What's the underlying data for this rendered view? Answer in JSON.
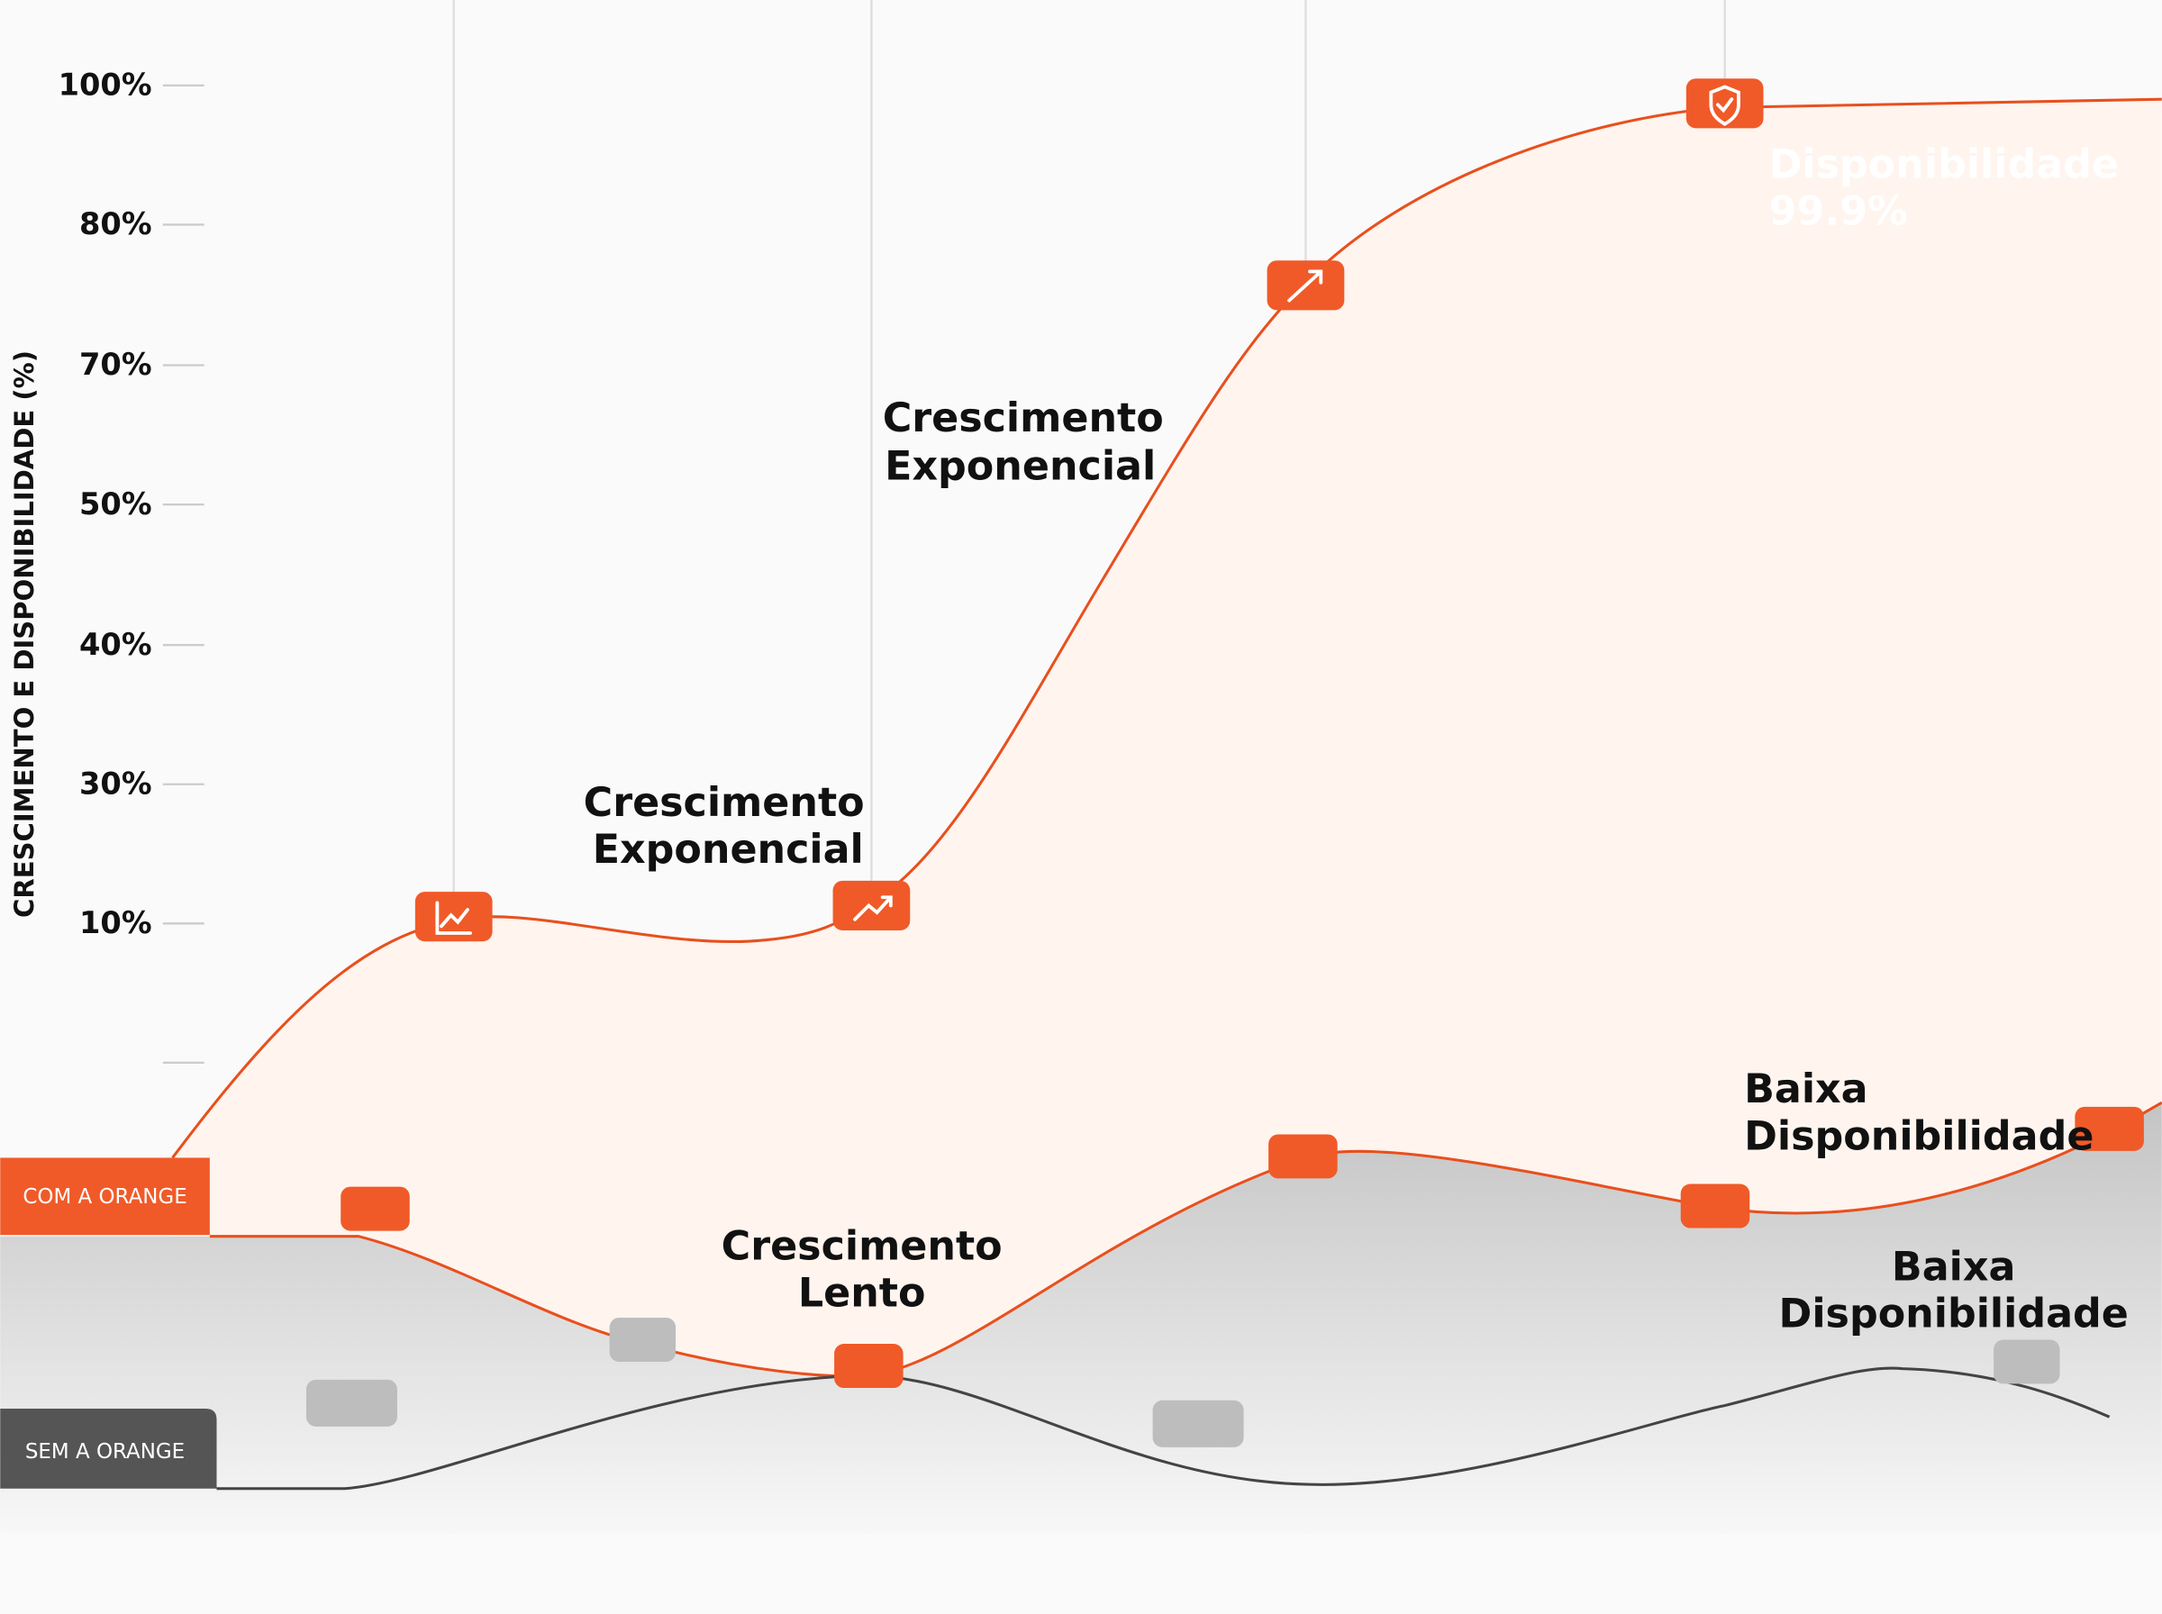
{
  "y_axis": {
    "title": "CRESCIMENTO E DISPONIBILIDADE (%)",
    "ticks": [
      "100%",
      "80%",
      "70%",
      "50%",
      "40%",
      "30%",
      "10%"
    ]
  },
  "legend": {
    "with": "COM A ORANGE",
    "without": "SEM A ORANGE"
  },
  "annotations": [
    {
      "lines": [
        "Crescimento",
        "Exponencial"
      ]
    },
    {
      "lines": [
        "Crescimento",
        "Exponencial"
      ]
    },
    {
      "lines": [
        "Crescimento",
        "Lento"
      ]
    },
    {
      "lines": [
        "Baixa",
        "Disponibilidade"
      ]
    },
    {
      "lines": [
        "Baixa",
        "Disponibilidade"
      ]
    },
    {
      "lines": [
        "Disponibilidade",
        "99.9%"
      ]
    }
  ]
}
